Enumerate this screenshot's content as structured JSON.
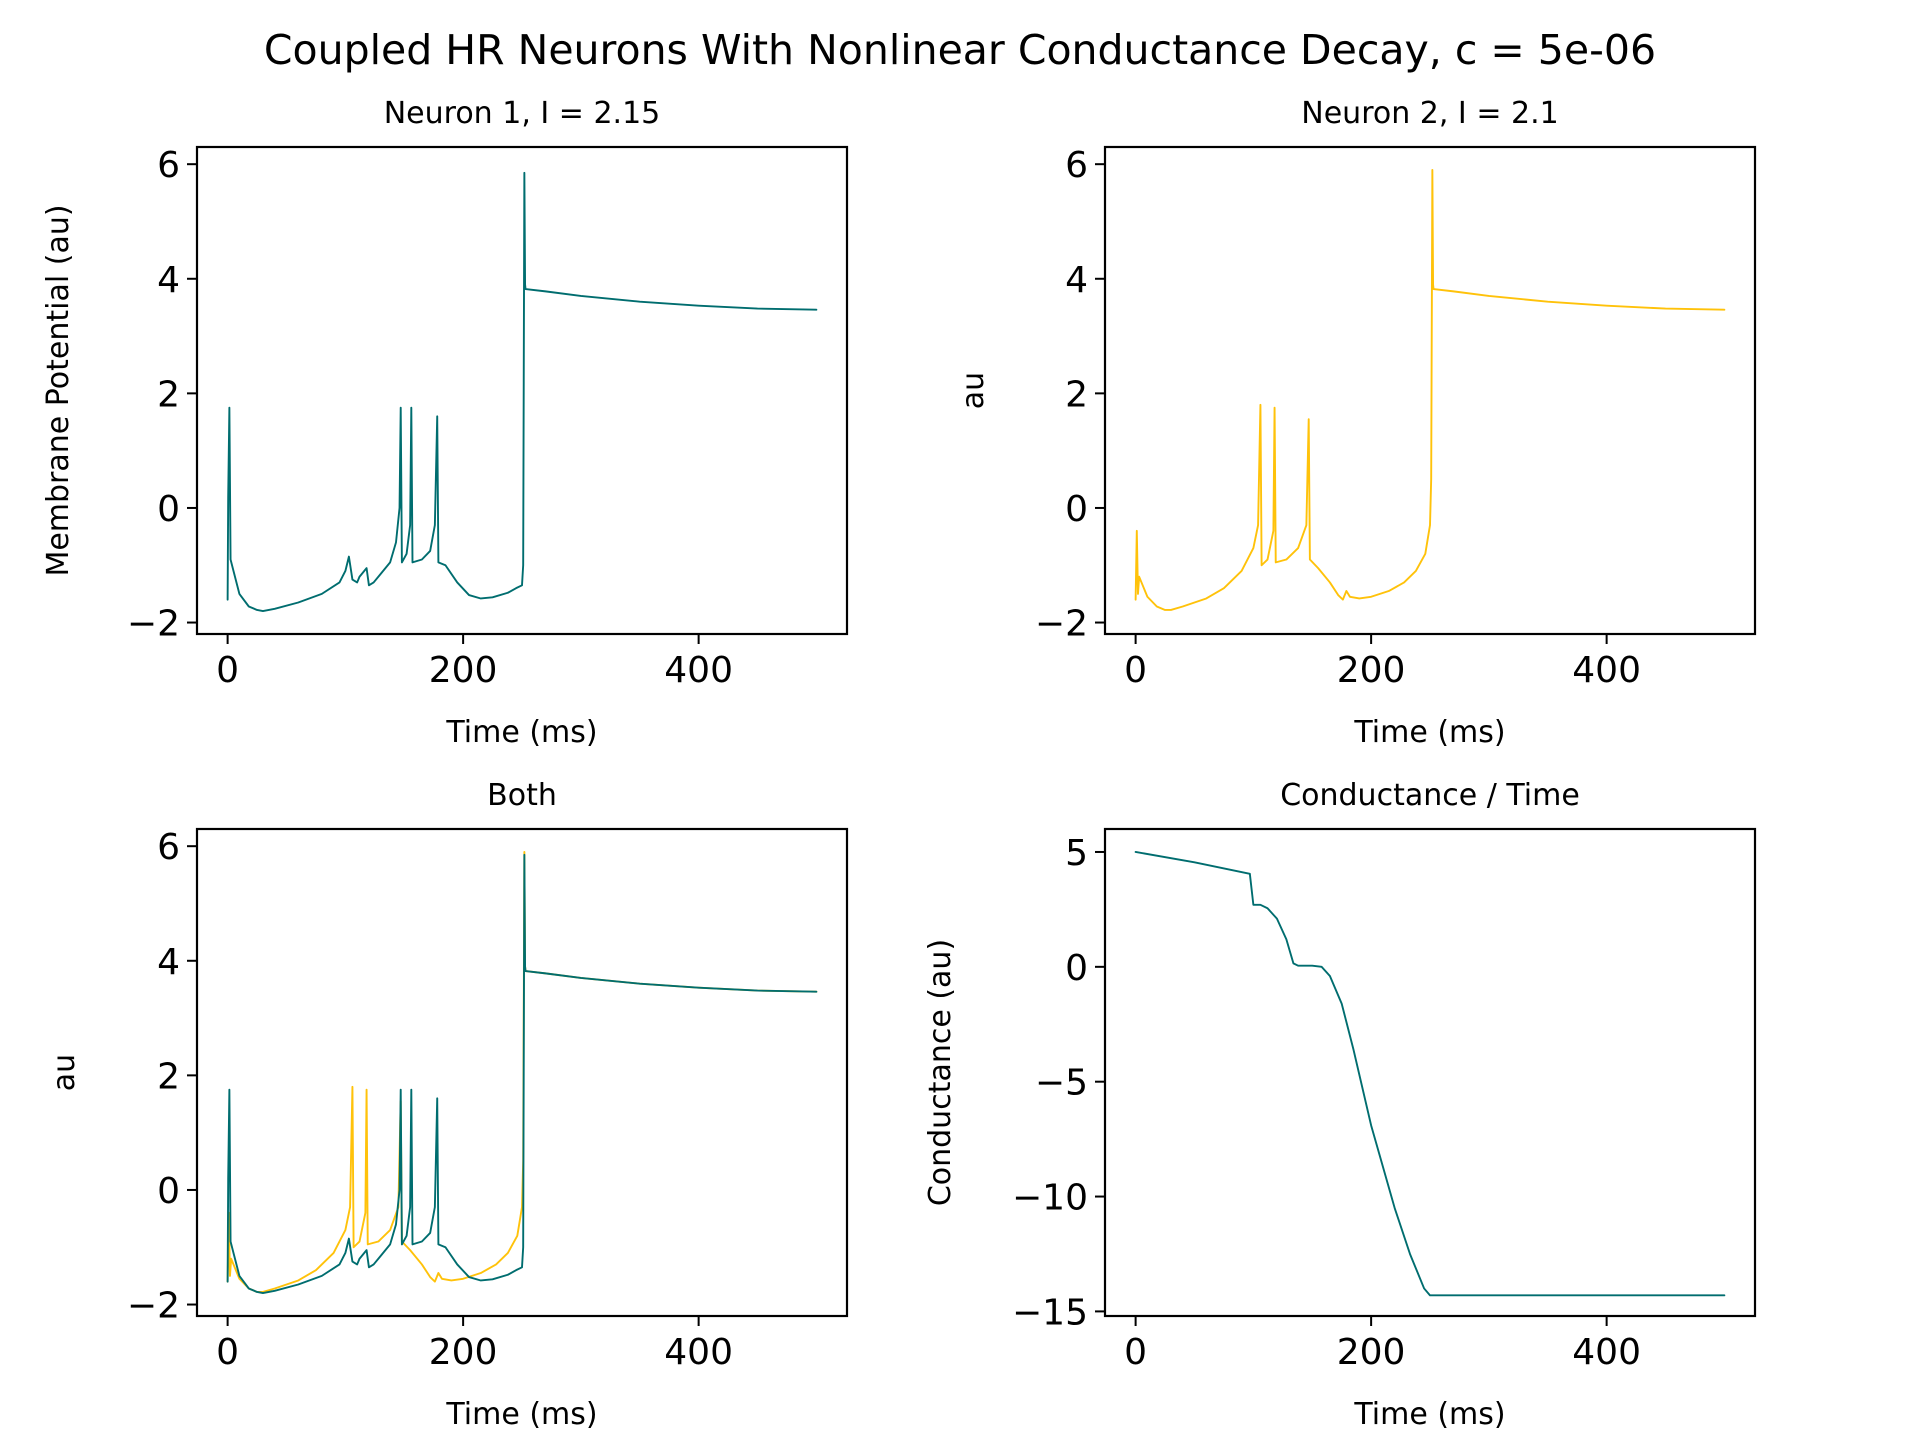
{
  "figure": {
    "title": "Coupled HR Neurons With Nonlinear Conductance Decay, c = 5e-06"
  },
  "colors": {
    "neuron1": "#006d6f",
    "neuron2": "#ffc20a"
  },
  "chart_data": [
    {
      "type": "line",
      "title": "Neuron 1, I = 2.15",
      "xlabel": "Time (ms)",
      "ylabel": "Membrane Potential (au)",
      "xlim": [
        -26,
        526
      ],
      "ylim": [
        -2.2,
        6.3
      ],
      "xticks": [
        0,
        200,
        400
      ],
      "yticks": [
        -2,
        0,
        2,
        4,
        6
      ],
      "series": [
        {
          "color_key": "neuron1",
          "points": [
            [
              0,
              -1.6
            ],
            [
              0.5,
              0.2
            ],
            [
              1.5,
              1.75
            ],
            [
              2.5,
              -0.9
            ],
            [
              5,
              -1.1
            ],
            [
              10,
              -1.5
            ],
            [
              18,
              -1.72
            ],
            [
              25,
              -1.78
            ],
            [
              30,
              -1.8
            ],
            [
              40,
              -1.76
            ],
            [
              60,
              -1.65
            ],
            [
              80,
              -1.5
            ],
            [
              95,
              -1.3
            ],
            [
              100,
              -1.1
            ],
            [
              103,
              -0.85
            ],
            [
              106,
              -1.25
            ],
            [
              110,
              -1.3
            ],
            [
              112,
              -1.2
            ],
            [
              118,
              -1.05
            ],
            [
              120,
              -1.35
            ],
            [
              124,
              -1.3
            ],
            [
              130,
              -1.15
            ],
            [
              138,
              -0.95
            ],
            [
              143,
              -0.6
            ],
            [
              146,
              0.0
            ],
            [
              147,
              1.75
            ],
            [
              148,
              -0.95
            ],
            [
              152,
              -0.8
            ],
            [
              155,
              -0.3
            ],
            [
              156,
              1.75
            ],
            [
              157,
              -0.95
            ],
            [
              165,
              -0.9
            ],
            [
              172,
              -0.75
            ],
            [
              176,
              -0.3
            ],
            [
              178,
              1.6
            ],
            [
              179,
              -0.95
            ],
            [
              185,
              -1.0
            ],
            [
              195,
              -1.3
            ],
            [
              205,
              -1.52
            ],
            [
              215,
              -1.58
            ],
            [
              225,
              -1.56
            ],
            [
              238,
              -1.48
            ],
            [
              245,
              -1.4
            ],
            [
              250,
              -1.35
            ],
            [
              251,
              -1.0
            ],
            [
              252,
              5.85
            ],
            [
              252.6,
              3.9
            ],
            [
              253,
              3.82
            ],
            [
              270,
              3.78
            ],
            [
              300,
              3.7
            ],
            [
              350,
              3.6
            ],
            [
              400,
              3.53
            ],
            [
              450,
              3.48
            ],
            [
              500,
              3.46
            ]
          ]
        }
      ]
    },
    {
      "type": "line",
      "title": "Neuron 2, I = 2.1",
      "xlabel": "Time (ms)",
      "ylabel": "au",
      "xlim": [
        -26,
        526
      ],
      "ylim": [
        -2.2,
        6.3
      ],
      "xticks": [
        0,
        200,
        400
      ],
      "yticks": [
        -2,
        0,
        2,
        4,
        6
      ],
      "series": [
        {
          "color_key": "neuron2",
          "points": [
            [
              0,
              -1.6
            ],
            [
              1,
              -0.4
            ],
            [
              2,
              -1.5
            ],
            [
              3,
              -1.2
            ],
            [
              6,
              -1.35
            ],
            [
              10,
              -1.55
            ],
            [
              18,
              -1.72
            ],
            [
              25,
              -1.78
            ],
            [
              30,
              -1.78
            ],
            [
              40,
              -1.72
            ],
            [
              60,
              -1.58
            ],
            [
              75,
              -1.4
            ],
            [
              90,
              -1.1
            ],
            [
              100,
              -0.7
            ],
            [
              104,
              -0.3
            ],
            [
              106,
              1.8
            ],
            [
              107,
              -1.0
            ],
            [
              112,
              -0.9
            ],
            [
              117,
              -0.4
            ],
            [
              118,
              1.75
            ],
            [
              119,
              -0.95
            ],
            [
              128,
              -0.9
            ],
            [
              138,
              -0.7
            ],
            [
              145,
              -0.3
            ],
            [
              147,
              1.55
            ],
            [
              148,
              -0.9
            ],
            [
              155,
              -1.05
            ],
            [
              165,
              -1.3
            ],
            [
              172,
              -1.52
            ],
            [
              176,
              -1.6
            ],
            [
              179,
              -1.45
            ],
            [
              182,
              -1.55
            ],
            [
              190,
              -1.58
            ],
            [
              200,
              -1.55
            ],
            [
              215,
              -1.45
            ],
            [
              228,
              -1.3
            ],
            [
              238,
              -1.1
            ],
            [
              246,
              -0.8
            ],
            [
              250,
              -0.3
            ],
            [
              251,
              0.5
            ],
            [
              252,
              5.9
            ],
            [
              252.6,
              3.9
            ],
            [
              253,
              3.82
            ],
            [
              270,
              3.78
            ],
            [
              300,
              3.7
            ],
            [
              350,
              3.6
            ],
            [
              400,
              3.53
            ],
            [
              450,
              3.48
            ],
            [
              500,
              3.46
            ]
          ]
        }
      ]
    },
    {
      "type": "line",
      "title": "Both",
      "xlabel": "Time (ms)",
      "ylabel": "au",
      "xlim": [
        -26,
        526
      ],
      "ylim": [
        -2.2,
        6.3
      ],
      "xticks": [
        0,
        200,
        400
      ],
      "yticks": [
        -2,
        0,
        2,
        4,
        6
      ],
      "series": [
        {
          "color_key": "neuron2",
          "points": [
            [
              0,
              -1.6
            ],
            [
              1,
              -0.4
            ],
            [
              2,
              -1.5
            ],
            [
              3,
              -1.2
            ],
            [
              6,
              -1.35
            ],
            [
              10,
              -1.55
            ],
            [
              18,
              -1.72
            ],
            [
              25,
              -1.78
            ],
            [
              30,
              -1.78
            ],
            [
              40,
              -1.72
            ],
            [
              60,
              -1.58
            ],
            [
              75,
              -1.4
            ],
            [
              90,
              -1.1
            ],
            [
              100,
              -0.7
            ],
            [
              104,
              -0.3
            ],
            [
              106,
              1.8
            ],
            [
              107,
              -1.0
            ],
            [
              112,
              -0.9
            ],
            [
              117,
              -0.4
            ],
            [
              118,
              1.75
            ],
            [
              119,
              -0.95
            ],
            [
              128,
              -0.9
            ],
            [
              138,
              -0.7
            ],
            [
              145,
              -0.3
            ],
            [
              147,
              1.55
            ],
            [
              148,
              -0.9
            ],
            [
              155,
              -1.05
            ],
            [
              165,
              -1.3
            ],
            [
              172,
              -1.52
            ],
            [
              176,
              -1.6
            ],
            [
              179,
              -1.45
            ],
            [
              182,
              -1.55
            ],
            [
              190,
              -1.58
            ],
            [
              200,
              -1.55
            ],
            [
              215,
              -1.45
            ],
            [
              228,
              -1.3
            ],
            [
              238,
              -1.1
            ],
            [
              246,
              -0.8
            ],
            [
              250,
              -0.3
            ],
            [
              251,
              0.5
            ],
            [
              252,
              5.9
            ],
            [
              252.6,
              3.9
            ],
            [
              253,
              3.82
            ],
            [
              270,
              3.78
            ],
            [
              300,
              3.7
            ],
            [
              350,
              3.6
            ],
            [
              400,
              3.53
            ],
            [
              450,
              3.48
            ],
            [
              500,
              3.46
            ]
          ]
        },
        {
          "color_key": "neuron1",
          "points": [
            [
              0,
              -1.6
            ],
            [
              0.5,
              0.2
            ],
            [
              1.5,
              1.75
            ],
            [
              2.5,
              -0.9
            ],
            [
              5,
              -1.1
            ],
            [
              10,
              -1.5
            ],
            [
              18,
              -1.72
            ],
            [
              25,
              -1.78
            ],
            [
              30,
              -1.8
            ],
            [
              40,
              -1.76
            ],
            [
              60,
              -1.65
            ],
            [
              80,
              -1.5
            ],
            [
              95,
              -1.3
            ],
            [
              100,
              -1.1
            ],
            [
              103,
              -0.85
            ],
            [
              106,
              -1.25
            ],
            [
              110,
              -1.3
            ],
            [
              112,
              -1.2
            ],
            [
              118,
              -1.05
            ],
            [
              120,
              -1.35
            ],
            [
              124,
              -1.3
            ],
            [
              130,
              -1.15
            ],
            [
              138,
              -0.95
            ],
            [
              143,
              -0.6
            ],
            [
              146,
              0.0
            ],
            [
              147,
              1.75
            ],
            [
              148,
              -0.95
            ],
            [
              152,
              -0.8
            ],
            [
              155,
              -0.3
            ],
            [
              156,
              1.75
            ],
            [
              157,
              -0.95
            ],
            [
              165,
              -0.9
            ],
            [
              172,
              -0.75
            ],
            [
              176,
              -0.3
            ],
            [
              178,
              1.6
            ],
            [
              179,
              -0.95
            ],
            [
              185,
              -1.0
            ],
            [
              195,
              -1.3
            ],
            [
              205,
              -1.52
            ],
            [
              215,
              -1.58
            ],
            [
              225,
              -1.56
            ],
            [
              238,
              -1.48
            ],
            [
              245,
              -1.4
            ],
            [
              250,
              -1.35
            ],
            [
              251,
              -1.0
            ],
            [
              252,
              5.85
            ],
            [
              252.6,
              3.9
            ],
            [
              253,
              3.82
            ],
            [
              270,
              3.78
            ],
            [
              300,
              3.7
            ],
            [
              350,
              3.6
            ],
            [
              400,
              3.53
            ],
            [
              450,
              3.48
            ],
            [
              500,
              3.46
            ]
          ]
        }
      ]
    },
    {
      "type": "line",
      "title": "Conductance / Time",
      "xlabel": "Time (ms)",
      "ylabel": "Conductance (au)",
      "xlim": [
        -26,
        526
      ],
      "ylim": [
        -15.2,
        6.0
      ],
      "xticks": [
        0,
        200,
        400
      ],
      "yticks": [
        5,
        0,
        -5,
        -10,
        -15
      ],
      "ytick_labels": [
        "5",
        "0",
        "−5",
        "−10",
        "−15"
      ],
      "series": [
        {
          "color_key": "neuron1",
          "points": [
            [
              0,
              5.0
            ],
            [
              50,
              4.55
            ],
            [
              97,
              4.05
            ],
            [
              100,
              2.7
            ],
            [
              106,
              2.7
            ],
            [
              112,
              2.55
            ],
            [
              120,
              2.1
            ],
            [
              128,
              1.2
            ],
            [
              134,
              0.15
            ],
            [
              138,
              0.05
            ],
            [
              150,
              0.05
            ],
            [
              158,
              0.0
            ],
            [
              165,
              -0.4
            ],
            [
              175,
              -1.6
            ],
            [
              185,
              -3.6
            ],
            [
              200,
              -6.9
            ],
            [
              220,
              -10.5
            ],
            [
              233,
              -12.5
            ],
            [
              245,
              -14.0
            ],
            [
              250,
              -14.3
            ],
            [
              300,
              -14.3
            ],
            [
              400,
              -14.3
            ],
            [
              500,
              -14.3
            ]
          ]
        }
      ]
    }
  ]
}
